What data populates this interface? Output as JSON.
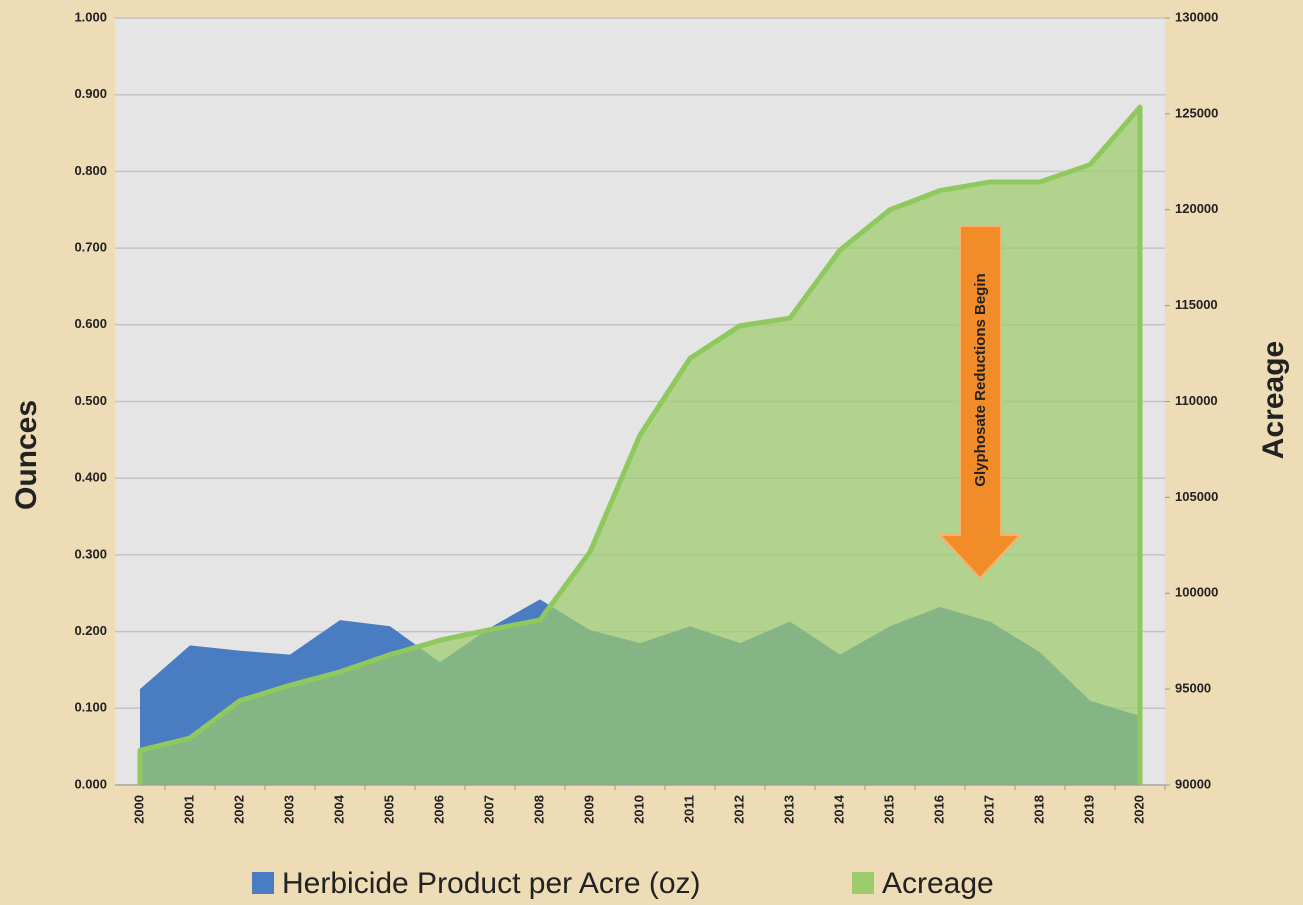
{
  "chart_data": {
    "type": "area",
    "categories": [
      "2000",
      "2001",
      "2002",
      "2003",
      "2004",
      "2005",
      "2006",
      "2007",
      "2008",
      "2009",
      "2010",
      "2011",
      "2012",
      "2013",
      "2014",
      "2015",
      "2016",
      "2017",
      "2018",
      "2019",
      "2020"
    ],
    "series": [
      {
        "name": "Herbicide Product per Acre (oz)",
        "color": "#4a7cc2",
        "values": [
          0.125,
          0.182,
          0.175,
          0.17,
          0.215,
          0.207,
          0.16,
          0.205,
          0.242,
          0.202,
          0.185,
          0.207,
          0.185,
          0.213,
          0.17,
          0.207,
          0.232,
          0.213,
          0.173,
          0.11,
          0.09
        ]
      },
      {
        "name": "Acreage",
        "color": "#9ccc6c",
        "axis": "y2",
        "values": [
          91800,
          92450,
          94400,
          95200,
          95900,
          96800,
          97550,
          98100,
          98600,
          102150,
          108250,
          112250,
          113950,
          114350,
          117900,
          120000,
          121000,
          121450,
          121450,
          122350,
          125350
        ]
      }
    ],
    "ylabel": "Ounces",
    "y2label": "Acreage",
    "ylim": [
      0,
      1
    ],
    "yticks": [
      {
        "value": 0,
        "label": "0.000"
      },
      {
        "value": 0.1,
        "label": "0.100"
      },
      {
        "value": 0.2,
        "label": "0.200"
      },
      {
        "value": 0.3,
        "label": "0.300"
      },
      {
        "value": 0.4,
        "label": "0.400"
      },
      {
        "value": 0.5,
        "label": "0.500"
      },
      {
        "value": 0.6,
        "label": "0.600"
      },
      {
        "value": 0.7,
        "label": "0.700"
      },
      {
        "value": 0.8,
        "label": "0.800"
      },
      {
        "value": 0.9,
        "label": "0.900"
      },
      {
        "value": 1,
        "label": "1.000"
      }
    ],
    "y2lim": [
      90000,
      130000
    ],
    "y2ticks": [
      90000,
      95000,
      100000,
      105000,
      110000,
      115000,
      120000,
      125000,
      130000
    ],
    "grid": true,
    "legend": "bottom",
    "annotation": "Glyphosate Reductions Begin"
  }
}
